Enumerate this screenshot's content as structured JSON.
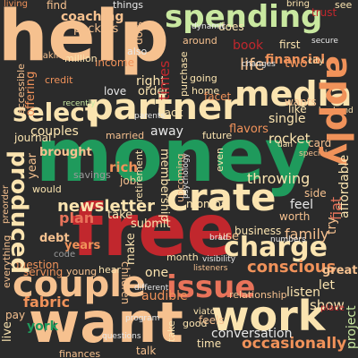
{
  "palette": {
    "background": "#2b2b2b",
    "orange": "#f0925a",
    "peach": "#f6c18f",
    "cream": "#fbe4b0",
    "green": "#1f9a5c",
    "lightgreen": "#c9e8a0",
    "red": "#c1272d",
    "salmon": "#e8735a",
    "gray": "#9a9a9a",
    "white": "#e8e8e8"
  },
  "words": {
    "help": "help",
    "money": "money",
    "free": "free",
    "want": "want",
    "work": "work",
    "couple": "couple",
    "issue": "issue",
    "partner": "partner",
    "media": "media",
    "apply": "apply",
    "crate": "crate",
    "spending": "spending",
    "select": "select",
    "charge": "charge",
    "produced": "produced",
    "newsletter": "newsletter",
    "conscious": "conscious",
    "occasionally": "occasionally",
    "coaching": "coaching",
    "financial": "financial",
    "accessible": "accessible",
    "offering": "offering",
    "throwing": "throwing",
    "affordable": "affordable",
    "journal": "journal",
    "couples": "couples",
    "brought": "brought",
    "plan": "plan",
    "debt": "debt",
    "question": "question",
    "serving": "serving",
    "fabric": "fabric",
    "york": "york",
    "audible": "audible",
    "children": "children",
    "family": "family",
    "listen": "listen",
    "show": "show",
    "great": "great",
    "conversation": "conversation",
    "rocket": "rocket",
    "flavors": "flavors",
    "single": "single",
    "membership": "membership",
    "submit": "submit",
    "take": "take",
    "make": "make",
    "month": "month",
    "rich": "rich",
    "fiat": "fiat",
    "try": "try",
    "feel": "feel",
    "side": "side",
    "worth": "worth",
    "life": "life",
    "two": "two",
    "book": "book",
    "order": "order",
    "right": "right",
    "away": "away",
    "income": "income",
    "wants": "wants",
    "like": "like",
    "love": "love",
    "married": "married",
    "packets": "packets",
    "find": "find",
    "living": "living",
    "things": "things",
    "see": "see",
    "trust": "trust",
    "first": "first",
    "stop": "stop",
    "times": "times",
    "facet": "facet",
    "project": "project",
    "time": "time",
    "feels": "feels",
    "take2": "take",
    "live": "live",
    "year": "year",
    "preorder": "preorder",
    "everything": "everything",
    "pay": "pay",
    "let": "let",
    "home": "home",
    "card": "card",
    "years": "years",
    "use": "use",
    "one": "one",
    "young": "young",
    "even": "even",
    "upcoming": "upcoming",
    "months": "months",
    "job": "job",
    "savings": "savings",
    "would": "would",
    "code": "code",
    "business": "business",
    "hear": "hear",
    "talk": "talk",
    "finances": "finances",
    "place": "place",
    "back": "back",
    "relationship": "relationship",
    "future": "future",
    "going": "going",
    "purchase": "purchase",
    "does": "does",
    "also": "also",
    "around": "around",
    "million": "million",
    "making": "making",
    "credit": "credit",
    "dynamic": "dynamic",
    "parents": "parents",
    "husband": "husband",
    "special": "special",
    "changes": "changes",
    "secure": "secure",
    "retirement": "retirement",
    "listeners": "listeners",
    "viator": "viator",
    "good": "good",
    "different": "different",
    "numbers": "numbers",
    "psychology": "psychology",
    "brad": "brad",
    "visibility": "visibility",
    "program": "program",
    "questions": "questions",
    "dan": "dan",
    "city": "city",
    "bring": "bring",
    "recently": "recently"
  }
}
